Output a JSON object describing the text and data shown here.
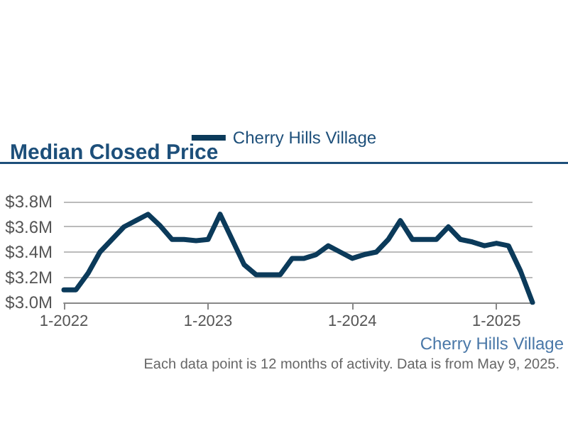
{
  "chart_data": {
    "type": "line",
    "title": "Median Closed Price",
    "categories": [
      "1-2022",
      null,
      null,
      null,
      null,
      null,
      null,
      null,
      null,
      null,
      null,
      null,
      "1-2023",
      null,
      null,
      null,
      null,
      null,
      null,
      null,
      null,
      null,
      null,
      null,
      "1-2024",
      null,
      null,
      null,
      null,
      null,
      null,
      null,
      null,
      null,
      null,
      null,
      "1-2025",
      null,
      null,
      null
    ],
    "series": [
      {
        "name": "Cherry Hills Village",
        "color": "#0b3a5a",
        "values": [
          3.1,
          3.1,
          3.23,
          3.4,
          3.5,
          3.6,
          3.65,
          3.7,
          3.61,
          3.5,
          3.5,
          3.49,
          3.5,
          3.7,
          3.5,
          3.3,
          3.22,
          3.22,
          3.22,
          3.35,
          3.35,
          3.38,
          3.45,
          3.4,
          3.35,
          3.38,
          3.4,
          3.5,
          3.65,
          3.5,
          3.5,
          3.5,
          3.6,
          3.5,
          3.48,
          3.45,
          3.47,
          3.45,
          3.25,
          3.0
        ]
      }
    ],
    "ylim": [
      3.0,
      3.8
    ],
    "yticks": [
      {
        "value": 3.0,
        "label": "$3.0M"
      },
      {
        "value": 3.2,
        "label": "$3.2M"
      },
      {
        "value": 3.4,
        "label": "$3.4M"
      },
      {
        "value": 3.6,
        "label": "$3.6M"
      },
      {
        "value": 3.8,
        "label": "$3.8M"
      }
    ],
    "grid": "y",
    "legend": "top",
    "marker": "none",
    "line_style": "solid",
    "annotations": [
      "Cherry Hills Village",
      "Each data point is 12 months of activity. Data is from May 9, 2025."
    ]
  }
}
